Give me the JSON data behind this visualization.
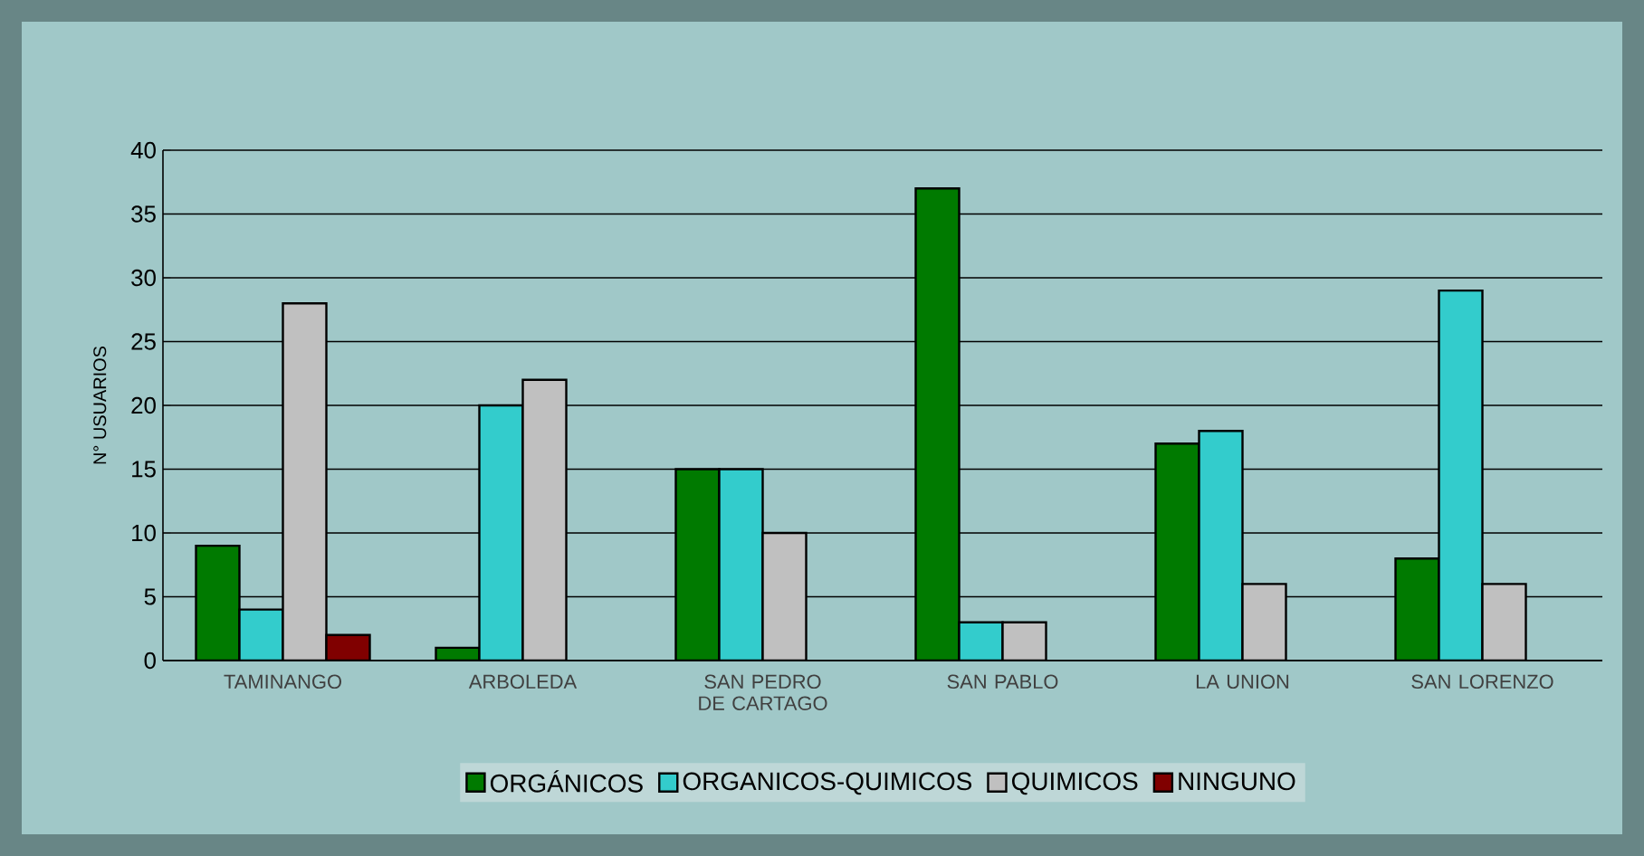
{
  "chart_data": {
    "type": "bar",
    "ylabel": "N° USUARIOS",
    "categories": [
      "TAMINANGO",
      "ARBOLEDA",
      "SAN PEDRO DE CARTAGO",
      "SAN PABLO",
      "LA UNION",
      "SAN LORENZO"
    ],
    "series": [
      {
        "name": "ORGÁNICOS",
        "color": "#007a00",
        "values": [
          9,
          1,
          15,
          37,
          17,
          8
        ]
      },
      {
        "name": "ORGANICOS-QUIMICOS",
        "color": "#33cccc",
        "values": [
          4,
          20,
          15,
          3,
          18,
          29
        ]
      },
      {
        "name": "QUIMICOS",
        "color": "#c0c0c0",
        "values": [
          28,
          22,
          10,
          3,
          6,
          6
        ]
      },
      {
        "name": "NINGUNO",
        "color": "#800000",
        "values": [
          2,
          null,
          null,
          null,
          null,
          null
        ]
      }
    ],
    "ylim": [
      0,
      40
    ],
    "yticks": [
      0,
      5,
      10,
      15,
      20,
      25,
      30,
      35,
      40
    ],
    "grid": "y",
    "legend": "bottom"
  }
}
